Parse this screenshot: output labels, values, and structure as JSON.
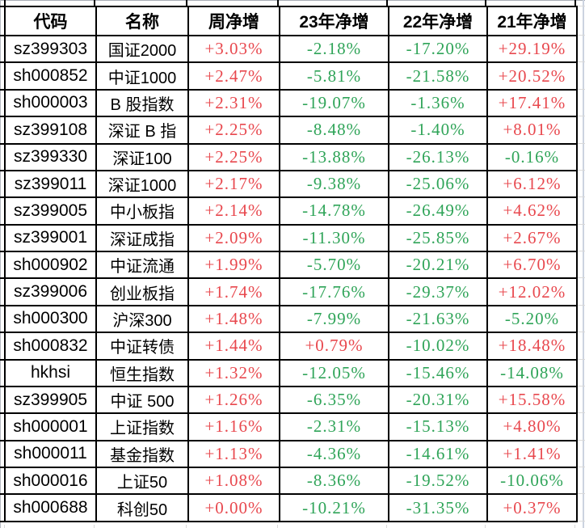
{
  "table": {
    "columns": [
      "代码",
      "名称",
      "周净增",
      "23年净增",
      "22年净增",
      "21年净增"
    ],
    "rows": [
      {
        "code": "sz399303",
        "name": "国证2000",
        "week": "+3.03%",
        "y23": "-2.18%",
        "y22": "-17.20%",
        "y21": "+29.19%"
      },
      {
        "code": "sh000852",
        "name": "中证1000",
        "week": "+2.47%",
        "y23": "-5.81%",
        "y22": "-21.58%",
        "y21": "+20.52%"
      },
      {
        "code": "sh000003",
        "name": "B 股指数",
        "week": "+2.31%",
        "y23": "-19.07%",
        "y22": "-1.36%",
        "y21": "+17.41%"
      },
      {
        "code": "sz399108",
        "name": "深证 B 指",
        "week": "+2.25%",
        "y23": "-8.48%",
        "y22": "-1.40%",
        "y21": "+8.01%"
      },
      {
        "code": "sz399330",
        "name": "深证100",
        "week": "+2.25%",
        "y23": "-13.88%",
        "y22": "-26.13%",
        "y21": "-0.16%"
      },
      {
        "code": "sz399011",
        "name": "深证1000",
        "week": "+2.17%",
        "y23": "-9.38%",
        "y22": "-25.06%",
        "y21": "+6.12%"
      },
      {
        "code": "sz399005",
        "name": "中小板指",
        "week": "+2.14%",
        "y23": "-14.78%",
        "y22": "-26.49%",
        "y21": "+4.62%"
      },
      {
        "code": "sz399001",
        "name": "深证成指",
        "week": "+2.09%",
        "y23": "-11.30%",
        "y22": "-25.85%",
        "y21": "+2.67%"
      },
      {
        "code": "sh000902",
        "name": "中证流通",
        "week": "+1.99%",
        "y23": "-5.70%",
        "y22": "-20.21%",
        "y21": "+6.70%"
      },
      {
        "code": "sz399006",
        "name": "创业板指",
        "week": "+1.74%",
        "y23": "-17.76%",
        "y22": "-29.37%",
        "y21": "+12.02%"
      },
      {
        "code": "sh000300",
        "name": "沪深300",
        "week": "+1.48%",
        "y23": "-7.99%",
        "y22": "-21.63%",
        "y21": "-5.20%"
      },
      {
        "code": "sh000832",
        "name": "中证转债",
        "week": "+1.44%",
        "y23": "+0.79%",
        "y22": "-10.02%",
        "y21": "+18.48%"
      },
      {
        "code": "hkhsi",
        "name": "恒生指数",
        "week": "+1.32%",
        "y23": "-12.05%",
        "y22": "-15.46%",
        "y21": "-14.08%"
      },
      {
        "code": "sz399905",
        "name": "中证 500",
        "week": "+1.26%",
        "y23": "-6.35%",
        "y22": "-20.31%",
        "y21": "+15.58%"
      },
      {
        "code": "sh000001",
        "name": "上证指数",
        "week": "+1.16%",
        "y23": "-2.31%",
        "y22": "-15.13%",
        "y21": "+4.80%"
      },
      {
        "code": "sh000011",
        "name": "基金指数",
        "week": "+1.13%",
        "y23": "-4.36%",
        "y22": "-14.61%",
        "y21": "+1.41%"
      },
      {
        "code": "sh000016",
        "name": "上证50",
        "week": "+1.08%",
        "y23": "-8.36%",
        "y22": "-19.52%",
        "y21": "-10.06%"
      },
      {
        "code": "sh000688",
        "name": "科创50",
        "week": "+0.00%",
        "y23": "-10.21%",
        "y22": "-31.35%",
        "y21": "+0.37%"
      }
    ]
  },
  "colors": {
    "positive": "#e8484e",
    "negative": "#2fa458",
    "border": "#000000"
  }
}
